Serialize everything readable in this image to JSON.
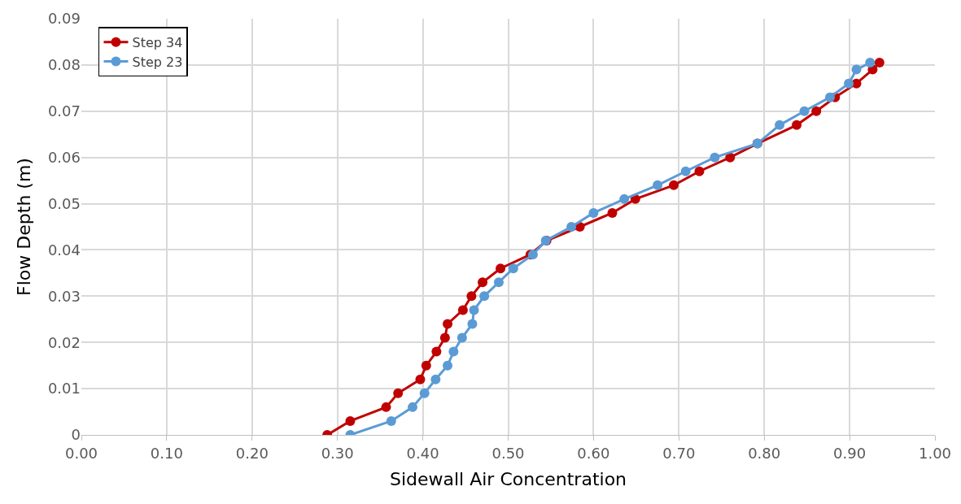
{
  "chart_data": {
    "type": "line",
    "xlabel": "Sidewall Air Concentration",
    "ylabel": "Flow Depth (m)",
    "xlim": [
      0,
      1
    ],
    "ylim": [
      0,
      0.09
    ],
    "xticks": [
      {
        "value": 0,
        "label": "0.00"
      },
      {
        "value": 0.1,
        "label": "0.10"
      },
      {
        "value": 0.2,
        "label": "0.20"
      },
      {
        "value": 0.3,
        "label": "0.30"
      },
      {
        "value": 0.4,
        "label": "0.40"
      },
      {
        "value": 0.5,
        "label": "0.50"
      },
      {
        "value": 0.6,
        "label": "0.60"
      },
      {
        "value": 0.7,
        "label": "0.70"
      },
      {
        "value": 0.8,
        "label": "0.80"
      },
      {
        "value": 0.9,
        "label": "0.90"
      },
      {
        "value": 1,
        "label": "1.00"
      }
    ],
    "yticks": [
      0,
      0.01,
      0.02,
      0.03,
      0.04,
      0.05,
      0.06,
      0.07,
      0.08,
      0.09
    ],
    "grid": true,
    "legend": "top left",
    "marker": "circle",
    "line_style": "solid",
    "series": [
      {
        "name": "Step 34",
        "color": "#c00000",
        "x": [
          0.288,
          0.315,
          0.357,
          0.371,
          0.397,
          0.404,
          0.416,
          0.426,
          0.429,
          0.447,
          0.457,
          0.47,
          0.491,
          0.526,
          0.545,
          0.584,
          0.622,
          0.649,
          0.694,
          0.724,
          0.76,
          0.792,
          0.838,
          0.861,
          0.883,
          0.908,
          0.927,
          0.935
        ],
        "values": [
          0,
          0.003,
          0.006,
          0.009,
          0.012,
          0.015,
          0.018,
          0.021,
          0.024,
          0.027,
          0.03,
          0.033,
          0.036,
          0.039,
          0.042,
          0.045,
          0.048,
          0.051,
          0.054,
          0.057,
          0.06,
          0.063,
          0.067,
          0.07,
          0.073,
          0.076,
          0.079,
          0.0805
        ]
      },
      {
        "name": "Step 23",
        "color": "#5b9bd5",
        "x": [
          0.315,
          0.363,
          0.388,
          0.402,
          0.415,
          0.429,
          0.436,
          0.446,
          0.458,
          0.46,
          0.472,
          0.489,
          0.506,
          0.529,
          0.544,
          0.574,
          0.6,
          0.636,
          0.675,
          0.708,
          0.742,
          0.792,
          0.818,
          0.847,
          0.877,
          0.899,
          0.908,
          0.924
        ],
        "values": [
          0,
          0.003,
          0.006,
          0.009,
          0.012,
          0.015,
          0.018,
          0.021,
          0.024,
          0.027,
          0.03,
          0.033,
          0.036,
          0.039,
          0.042,
          0.045,
          0.048,
          0.051,
          0.054,
          0.057,
          0.06,
          0.063,
          0.067,
          0.07,
          0.073,
          0.076,
          0.079,
          0.0805
        ]
      }
    ]
  }
}
